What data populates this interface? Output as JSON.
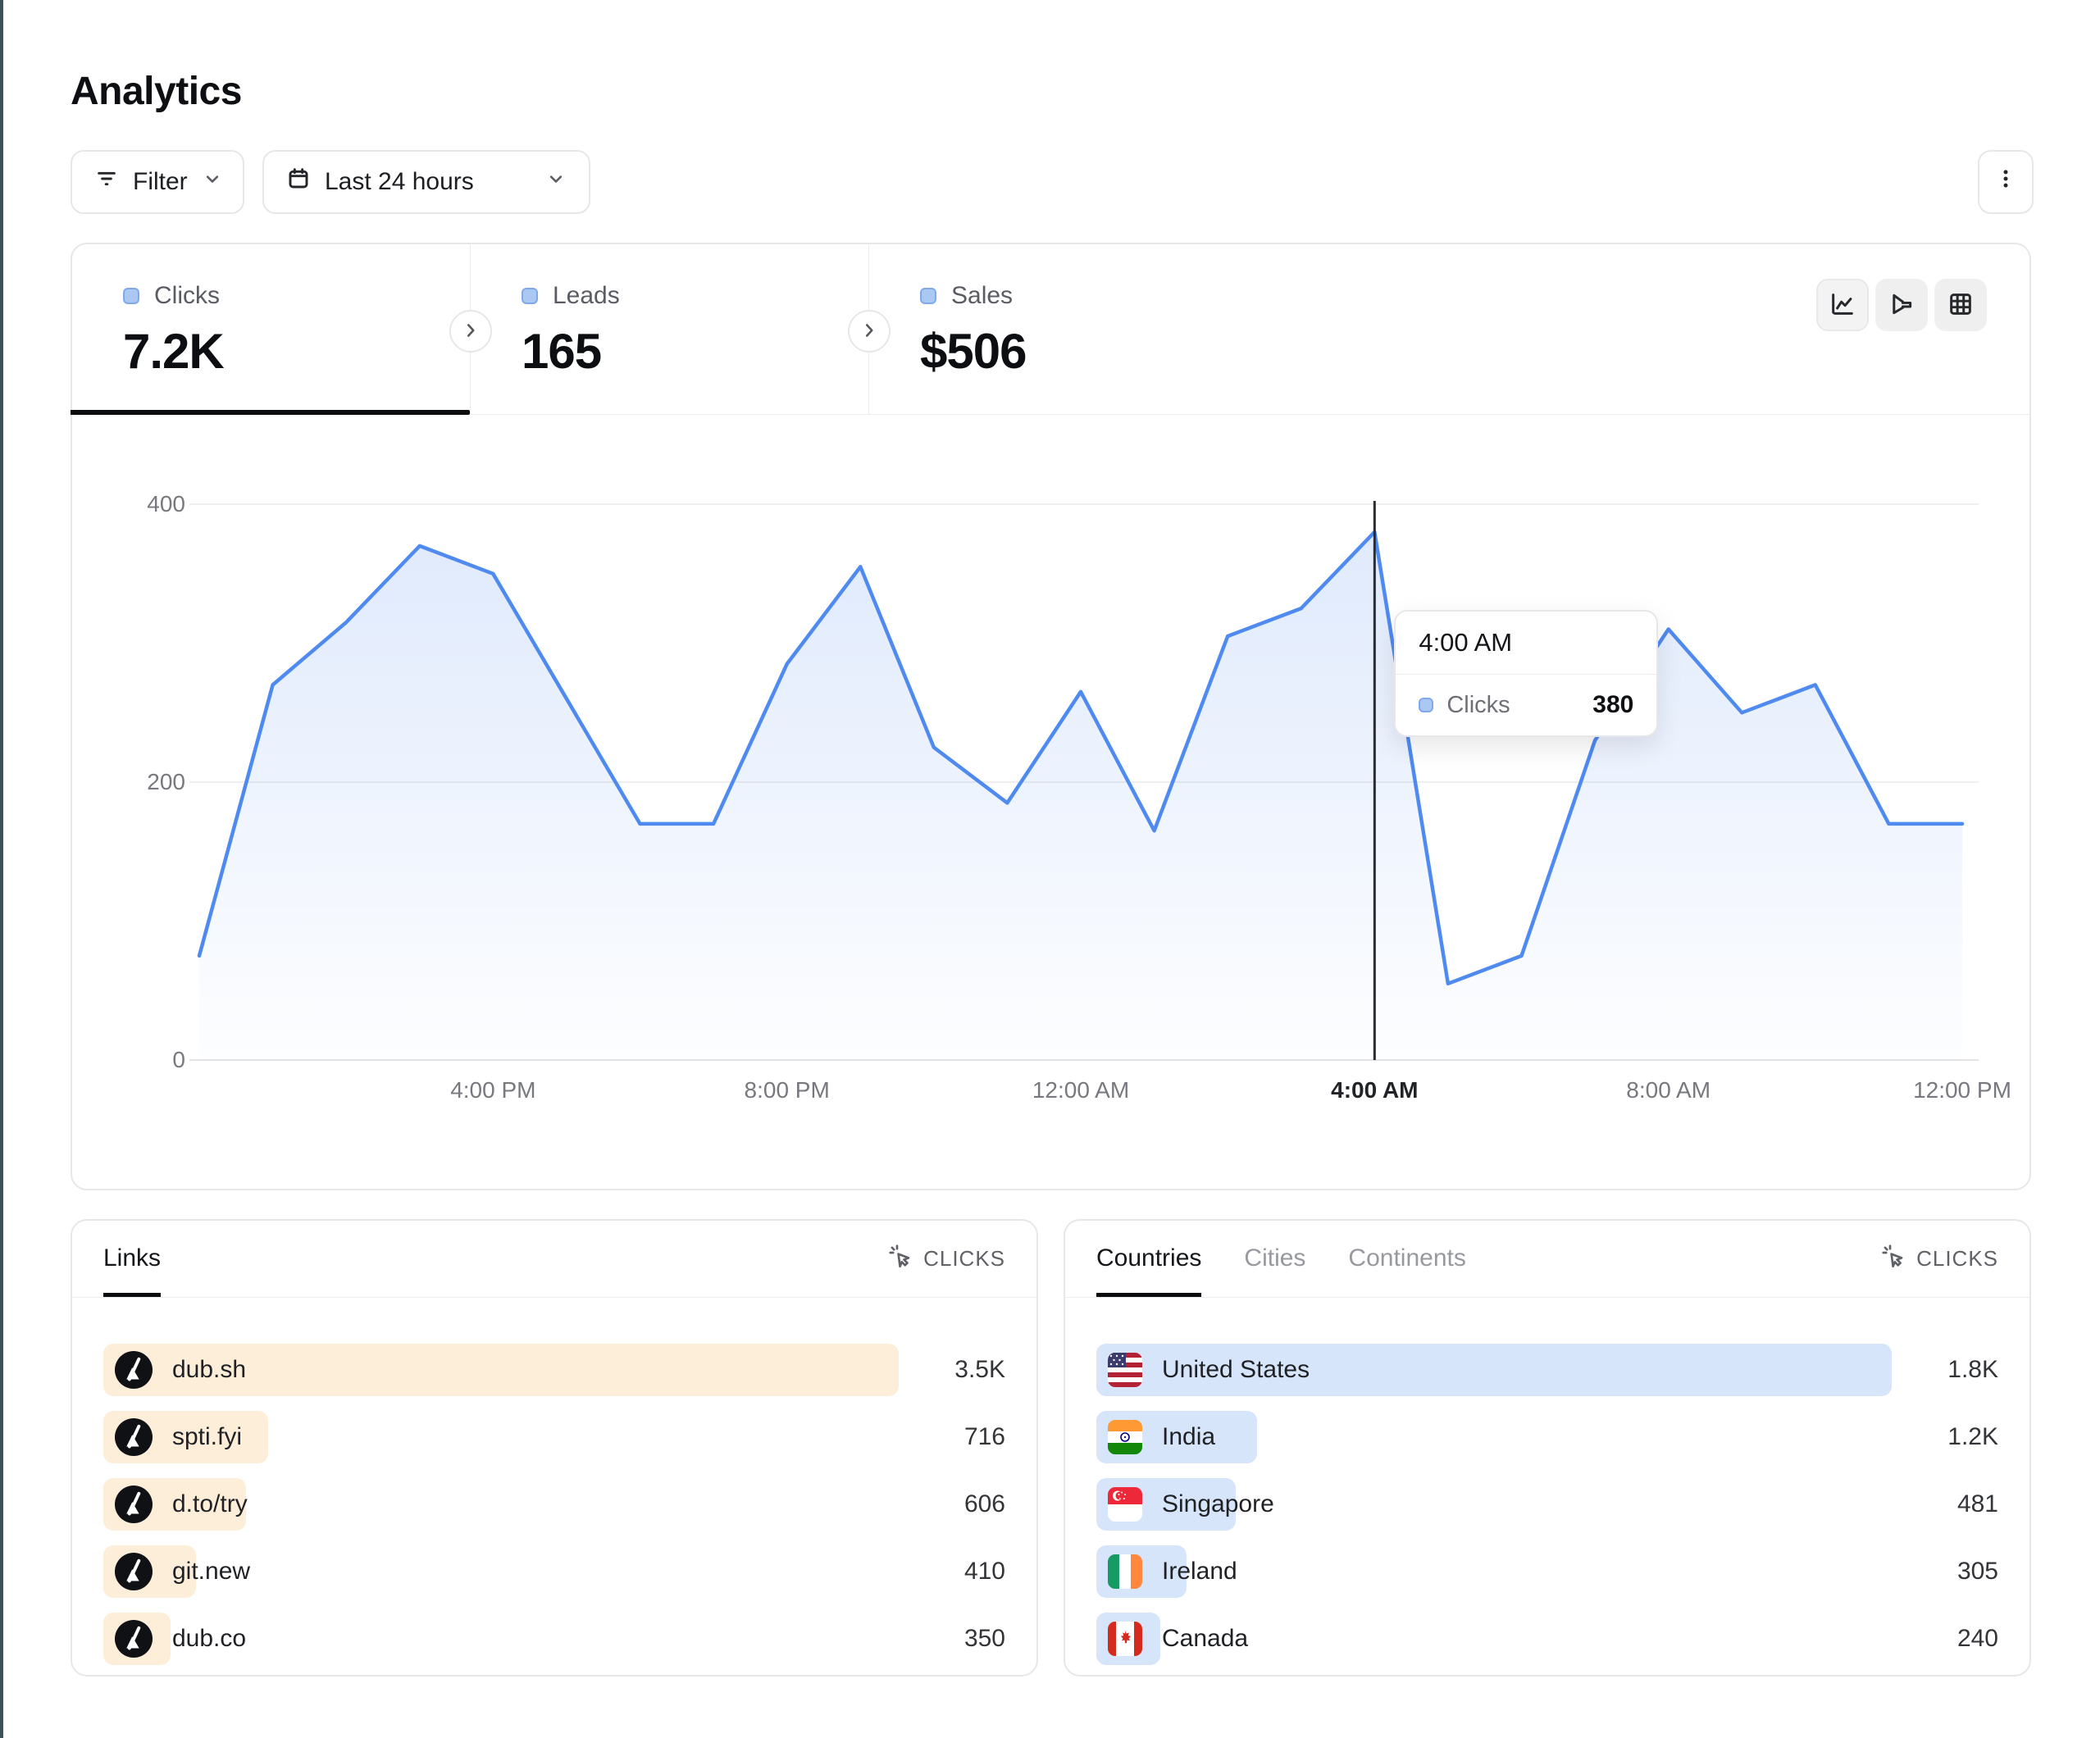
{
  "page": {
    "title": "Analytics"
  },
  "toolbar": {
    "filter_label": "Filter",
    "date_range_label": "Last 24 hours"
  },
  "colors": {
    "accent_blue": "#4f8af0",
    "links_bar": "#fdeeda",
    "countries_bar": "#d7e5fa",
    "left_edge_strip": "#3e5156",
    "crosshair": "#2a2c30"
  },
  "stats": {
    "tabs": [
      {
        "label": "Clicks",
        "value": "7.2K",
        "active": true
      },
      {
        "label": "Leads",
        "value": "165",
        "active": false
      },
      {
        "label": "Sales",
        "value": "$506",
        "active": false
      }
    ]
  },
  "view_toggles": [
    {
      "icon": "line-chart-icon",
      "active": true
    },
    {
      "icon": "funnel-chart-icon",
      "active": false
    },
    {
      "icon": "table-icon",
      "active": false
    }
  ],
  "chart_data": {
    "type": "area",
    "series_name": "Clicks",
    "x": [
      "12:00 PM",
      "1:00 PM",
      "2:00 PM",
      "3:00 PM",
      "4:00 PM",
      "5:00 PM",
      "6:00 PM",
      "7:00 PM",
      "8:00 PM",
      "9:00 PM",
      "10:00 PM",
      "11:00 PM",
      "12:00 AM",
      "1:00 AM",
      "2:00 AM",
      "3:00 AM",
      "4:00 AM",
      "5:00 AM",
      "6:00 AM",
      "7:00 AM",
      "8:00 AM",
      "9:00 AM",
      "10:00 AM",
      "11:00 AM",
      "12:00 PM"
    ],
    "values": [
      75,
      270,
      315,
      370,
      350,
      260,
      170,
      170,
      285,
      355,
      225,
      185,
      265,
      165,
      305,
      325,
      380,
      55,
      75,
      230,
      310,
      250,
      270,
      170,
      170
    ],
    "ylim": [
      0,
      400
    ],
    "y_ticks": [
      "400",
      "200",
      "0"
    ],
    "x_ticks": [
      {
        "label": "4:00 PM",
        "index": 4,
        "highlight": false
      },
      {
        "label": "8:00 PM",
        "index": 8,
        "highlight": false
      },
      {
        "label": "12:00 AM",
        "index": 12,
        "highlight": false
      },
      {
        "label": "4:00 AM",
        "index": 16,
        "highlight": true
      },
      {
        "label": "8:00 AM",
        "index": 20,
        "highlight": false
      },
      {
        "label": "12:00 PM",
        "index": 24,
        "highlight": false
      }
    ],
    "grid": "horizontal",
    "legend_position": "none",
    "highlight_index": 16,
    "tooltip": {
      "title": "4:00 AM",
      "series": "Clicks",
      "value": "380"
    }
  },
  "links_panel": {
    "tabs": [
      {
        "label": "Links",
        "active": true
      }
    ],
    "metric_label": "CLICKS",
    "rows": [
      {
        "label": "dub.sh",
        "value": "3.5K",
        "width_pct": 100,
        "icon": "dub-logo"
      },
      {
        "label": "spti.fyi",
        "value": "716",
        "width_pct": 20.7,
        "icon": "dub-logo"
      },
      {
        "label": "d.to/try",
        "value": "606",
        "width_pct": 17.9,
        "icon": "dub-logo"
      },
      {
        "label": "git.new",
        "value": "410",
        "width_pct": 11.7,
        "icon": "dub-logo"
      },
      {
        "label": "dub.co",
        "value": "350",
        "width_pct": 8.5,
        "icon": "dub-logo"
      }
    ]
  },
  "countries_panel": {
    "tabs": [
      {
        "label": "Countries",
        "active": true
      },
      {
        "label": "Cities",
        "active": false
      },
      {
        "label": "Continents",
        "active": false
      }
    ],
    "metric_label": "CLICKS",
    "rows": [
      {
        "label": "United States",
        "value": "1.8K",
        "width_pct": 100,
        "icon": "flag-us"
      },
      {
        "label": "India",
        "value": "1.2K",
        "width_pct": 20.2,
        "icon": "flag-in"
      },
      {
        "label": "Singapore",
        "value": "481",
        "width_pct": 17.5,
        "icon": "flag-sg"
      },
      {
        "label": "Ireland",
        "value": "305",
        "width_pct": 11.3,
        "icon": "flag-ie"
      },
      {
        "label": "Canada",
        "value": "240",
        "width_pct": 8,
        "icon": "flag-ca"
      }
    ]
  }
}
